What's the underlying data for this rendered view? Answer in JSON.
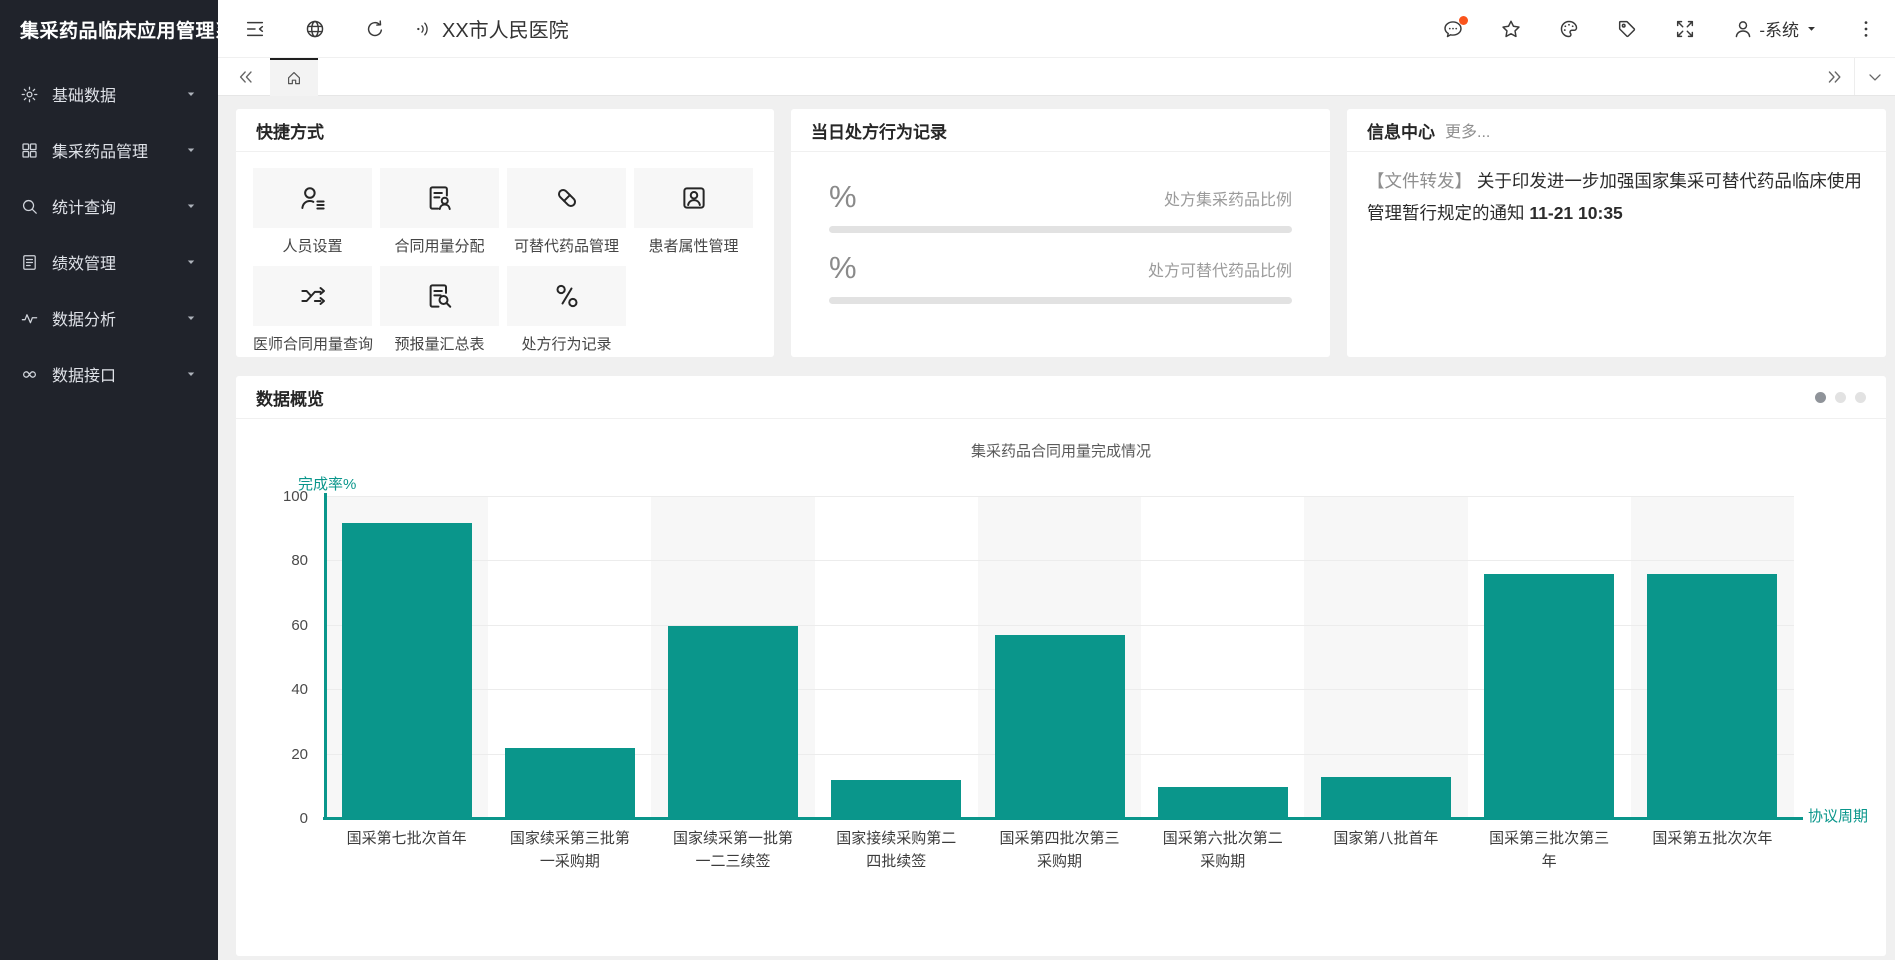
{
  "app_title": "集采药品临床应用管理系",
  "sidebar": {
    "items": [
      {
        "label": "基础数据",
        "icon": "gear-icon"
      },
      {
        "label": "集采药品管理",
        "icon": "apps-icon"
      },
      {
        "label": "统计查询",
        "icon": "search-icon"
      },
      {
        "label": "绩效管理",
        "icon": "book-icon"
      },
      {
        "label": "数据分析",
        "icon": "pulse-icon"
      },
      {
        "label": "数据接口",
        "icon": "link-icon"
      }
    ]
  },
  "header": {
    "hospital": "XX市人民医院",
    "user": "-系统"
  },
  "quick": {
    "title": "快捷方式",
    "items": [
      {
        "label": "人员设置",
        "icon": "person-settings-icon"
      },
      {
        "label": "合同用量分配",
        "icon": "contract-person-icon"
      },
      {
        "label": "可替代药品管理",
        "icon": "pill-icon"
      },
      {
        "label": "患者属性管理",
        "icon": "patient-badge-icon"
      },
      {
        "label": "医师合同用量查询",
        "icon": "shuffle-icon"
      },
      {
        "label": "预报量汇总表",
        "icon": "report-search-icon"
      },
      {
        "label": "处方行为记录",
        "icon": "share-nodes-icon"
      }
    ]
  },
  "today": {
    "title": "当日处方行为记录",
    "metrics": [
      {
        "value": "%",
        "label": "处方集采药品比例"
      },
      {
        "value": "%",
        "label": "处方可替代药品比例"
      }
    ]
  },
  "info": {
    "title": "信息中心",
    "more": "更多...",
    "message_prefix": "【文件转发】",
    "message": "关于印发进一步加强国家集采可替代药品临床使用管理暂行规定的通知",
    "time": "11-21 10:35"
  },
  "overview": {
    "title": "数据概览",
    "pager_dots": 3,
    "active_dot": 0
  },
  "chart_data": {
    "type": "bar",
    "title": "集采药品合同用量完成情况",
    "categories": [
      "国采第七批次首年",
      "国家续采第三批第\n一采购期",
      "国家续采第一批第\n一二三续签",
      "国家接续采购第二\n四批续签",
      "国采第四批次第三\n采购期",
      "国采第六批次第二\n采购期",
      "国家第八批首年",
      "国采第三批次第三\n年",
      "国采第五批次次年"
    ],
    "values": [
      92,
      22,
      60,
      12,
      57,
      10,
      13,
      76,
      76
    ],
    "xlabel": "协议周期",
    "ylabel": "完成率%",
    "ylim": [
      0,
      100
    ],
    "yticks": [
      0,
      20,
      40,
      60,
      80,
      100
    ],
    "grid": true,
    "split_area_alternating": true,
    "legend": "none"
  },
  "colors": {
    "teal": "#0a968b",
    "notification": "#fa541c",
    "sidebar_bg": "#20232b",
    "split_band": "#f7f7f7",
    "grid_line": "#ececec"
  }
}
